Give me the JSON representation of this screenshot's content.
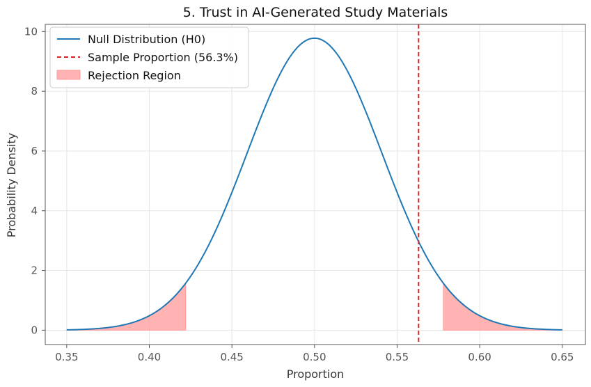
{
  "chart_data": {
    "type": "area",
    "title": "5. Trust in AI-Generated Study Materials",
    "xlabel": "Proportion",
    "ylabel": "Probability Density",
    "xlim": [
      0.337,
      0.664
    ],
    "ylim": [
      -0.48,
      10.24
    ],
    "xticks": [
      0.35,
      0.4,
      0.45,
      0.5,
      0.55,
      0.6,
      0.65
    ],
    "xtick_labels": [
      "0.35",
      "0.40",
      "0.45",
      "0.50",
      "0.55",
      "0.60",
      "0.65"
    ],
    "yticks": [
      0,
      2,
      4,
      6,
      8,
      10
    ],
    "ytick_labels": [
      "0",
      "2",
      "4",
      "6",
      "8",
      "10"
    ],
    "grid": true,
    "legend_position": "top-left",
    "null_distribution": {
      "name": "Null Distribution (H0)",
      "mean": 0.5,
      "std": 0.0408,
      "x_range": [
        0.35,
        0.65
      ],
      "color": "#1f77b4"
    },
    "sample_proportion": {
      "name": "Sample Proportion (56.3%)",
      "value": 0.563,
      "color": "#d62728"
    },
    "rejection_region": {
      "name": "Rejection Region",
      "lower_tail": [
        0.35,
        0.422
      ],
      "upper_tail": [
        0.578,
        0.65
      ],
      "color": "#ff9999"
    }
  }
}
